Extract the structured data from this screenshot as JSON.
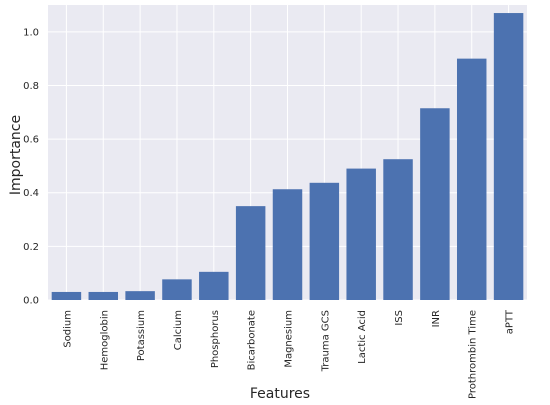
{
  "chart_data": {
    "type": "bar",
    "title": "",
    "xlabel": "Features",
    "ylabel": "Importance",
    "categories": [
      "Sodium",
      "Hemoglobin",
      "Potassium",
      "Calcium",
      "Phosphorus",
      "Bicarbonate",
      "Magnesium",
      "Trauma GCS",
      "Lactic Acid",
      "ISS",
      "INR",
      "Prothrombin Time",
      "aPTT"
    ],
    "values": [
      0.03,
      0.03,
      0.033,
      0.077,
      0.105,
      0.35,
      0.413,
      0.437,
      0.49,
      0.525,
      0.715,
      0.9,
      1.07
    ],
    "ylim": [
      0,
      1.1
    ],
    "yticks": [
      0.0,
      0.2,
      0.4,
      0.6,
      0.8,
      1.0
    ],
    "ytick_labels": [
      "0.0",
      "0.2",
      "0.4",
      "0.6",
      "0.8",
      "1.0"
    ],
    "grid": true,
    "legend": false,
    "colors": {
      "bar": "#4c72b0",
      "plot_background": "#eaeaf2",
      "grid": "#ffffff"
    }
  }
}
